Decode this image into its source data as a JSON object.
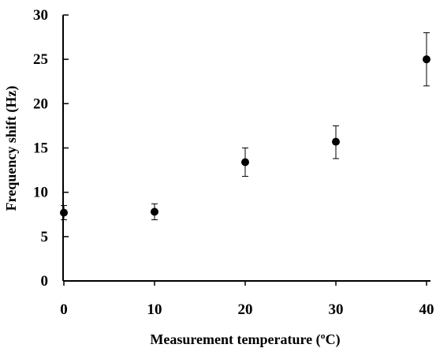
{
  "chart_data": {
    "type": "scatter",
    "title": "",
    "xlabel": "Measurement temperature (ºC)",
    "ylabel": "Frequency shift (Hz)",
    "xlim": [
      0,
      40
    ],
    "ylim": [
      0,
      30
    ],
    "x_ticks": [
      "0",
      "10",
      "20",
      "30",
      "40"
    ],
    "y_ticks": [
      "0",
      "5",
      "10",
      "15",
      "20",
      "25",
      "30"
    ],
    "grid": false,
    "legend": "none",
    "marker_color": "#000000",
    "series": [
      {
        "points": [
          {
            "x": 0,
            "y": 7.7,
            "err_low": 6.9,
            "err_high": 8.5
          },
          {
            "x": 10,
            "y": 7.8,
            "err_low": 6.9,
            "err_high": 8.7
          },
          {
            "x": 20,
            "y": 13.4,
            "err_low": 11.8,
            "err_high": 15.0
          },
          {
            "x": 30,
            "y": 15.7,
            "err_low": 13.8,
            "err_high": 17.5
          },
          {
            "x": 40,
            "y": 25.0,
            "err_low": 22.0,
            "err_high": 28.0
          }
        ]
      }
    ]
  }
}
